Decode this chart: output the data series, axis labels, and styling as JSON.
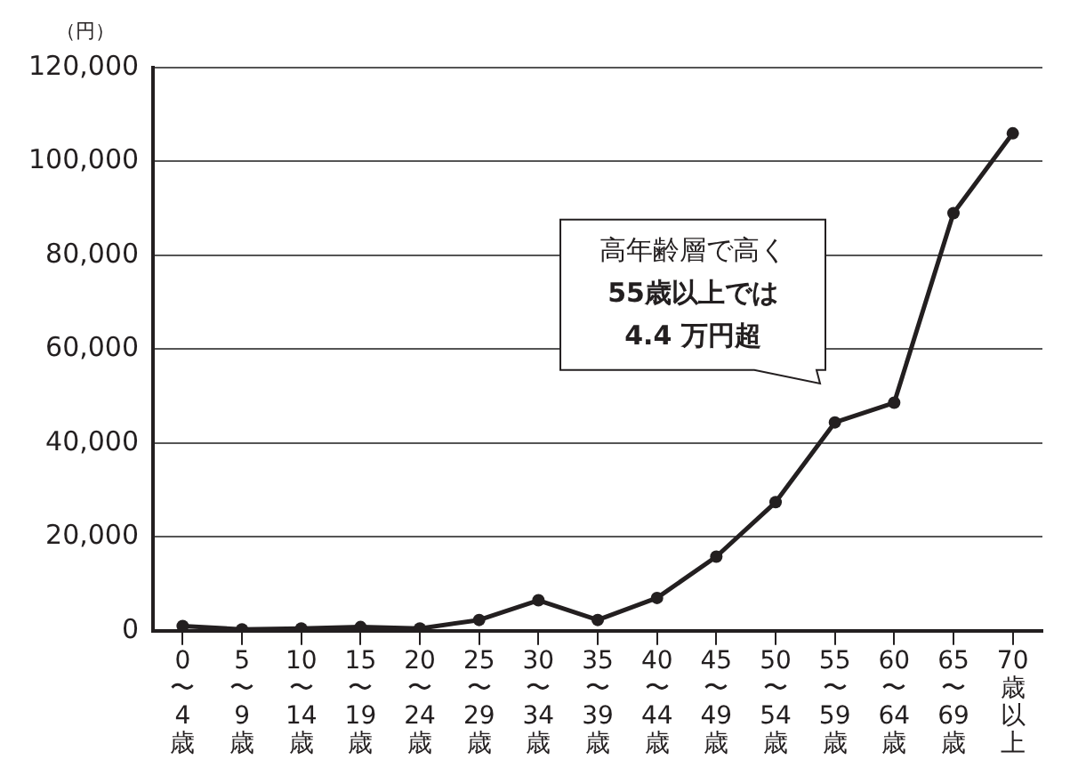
{
  "chart_data": {
    "type": "line",
    "ylabel": "（円）",
    "categories": [
      "0〜4歳",
      "5〜9歳",
      "10〜14歳",
      "15〜19歳",
      "20〜24歳",
      "25〜29歳",
      "30〜34歳",
      "35〜39歳",
      "40〜44歳",
      "45〜49歳",
      "50〜54歳",
      "55〜59歳",
      "60〜64歳",
      "65〜69歳",
      "70歳以上"
    ],
    "series": [
      {
        "color": "#231f20",
        "values": [
          1000,
          300,
          500,
          800,
          500,
          2300,
          6500,
          2300,
          7000,
          15800,
          27400,
          44400,
          48600,
          89000,
          106000
        ]
      }
    ],
    "ylim": [
      0,
      120000
    ],
    "yticks": [
      0,
      {
        "value": 20000,
        "label": "20,000"
      },
      {
        "value": 40000,
        "label": "40,000"
      },
      {
        "value": 60000,
        "label": "60,000"
      },
      {
        "value": 80000,
        "label": "80,000"
      },
      {
        "value": 100000,
        "label": "100,000"
      },
      {
        "value": 120000,
        "label": "120,000"
      }
    ],
    "grid": "y",
    "legend": false,
    "marker": "circle",
    "line_style": "solid",
    "annotations": [
      "高年齢層で高く\n55歳以上では\n4.4 万円超"
    ]
  }
}
